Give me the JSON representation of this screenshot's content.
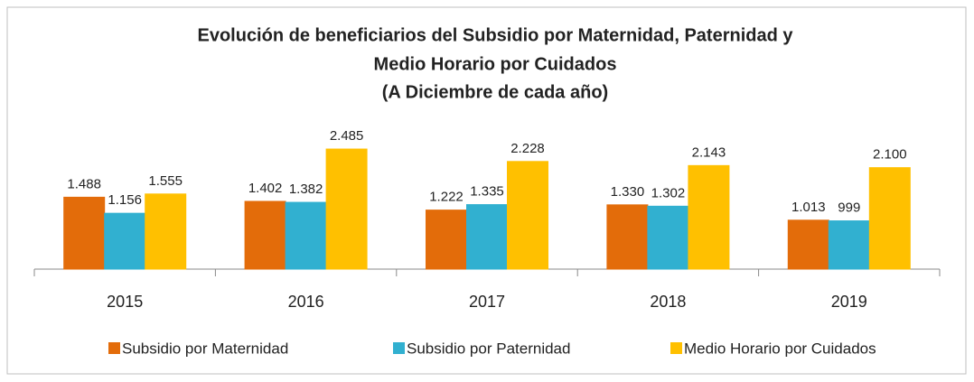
{
  "chart_data": {
    "type": "bar",
    "title": "Evolución de beneficiarios del Subsidio por Maternidad, Paternidad y",
    "subtitle": "Medio Horario por Cuidados",
    "subtitle2": "(A Diciembre de cada año)",
    "categories": [
      "2015",
      "2016",
      "2017",
      "2018",
      "2019"
    ],
    "series": [
      {
        "name": "Subsidio por Maternidad",
        "color": "#e36c0a",
        "values": [
          1488,
          1402,
          1222,
          1330,
          1013
        ],
        "value_labels": [
          "1.488",
          "1.402",
          "1.222",
          "1.330",
          "1.013"
        ]
      },
      {
        "name": "Subsidio por Paternidad",
        "color": "#31b0d0",
        "values": [
          1156,
          1382,
          1335,
          1302,
          999
        ],
        "value_labels": [
          "1.156",
          "1.382",
          "1.335",
          "1.302",
          "999"
        ]
      },
      {
        "name": "Medio Horario por Cuidados",
        "color": "#ffc000",
        "values": [
          1555,
          2485,
          2228,
          2143,
          2100
        ],
        "value_labels": [
          "1.555",
          "2.485",
          "2.228",
          "2.143",
          "2.100"
        ]
      }
    ],
    "legend": "bottom"
  }
}
